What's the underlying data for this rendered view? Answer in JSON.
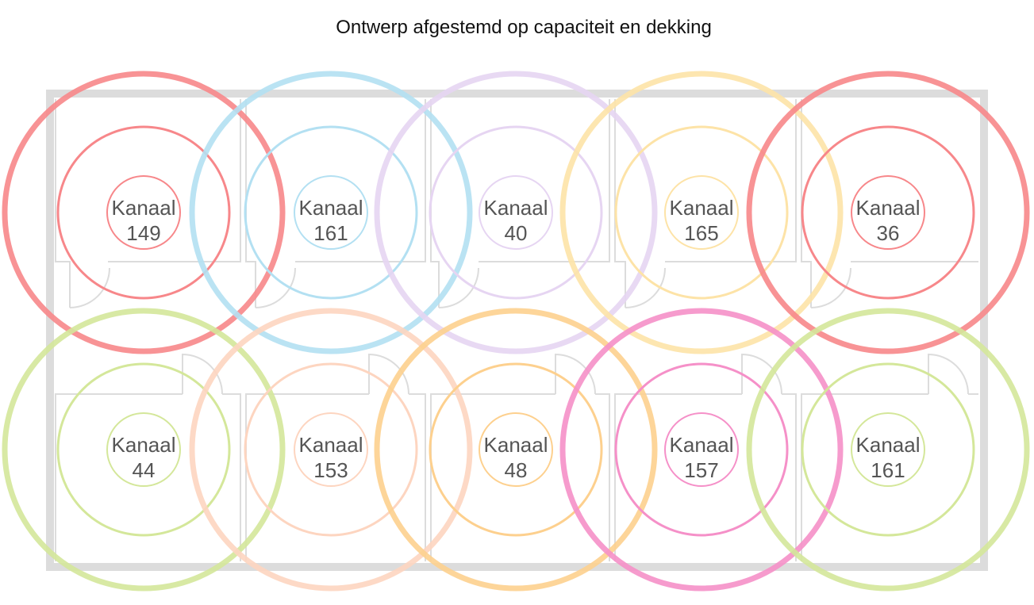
{
  "title": "Ontwerp afgestemd op capaciteit en dekking",
  "nodes": [
    {
      "label": "Kanaal",
      "channel": "149",
      "color": "#f7878a"
    },
    {
      "label": "Kanaal",
      "channel": "161",
      "color": "#b3e0f2"
    },
    {
      "label": "Kanaal",
      "channel": "40",
      "color": "#e6d5f2"
    },
    {
      "label": "Kanaal",
      "channel": "165",
      "color": "#fde3a7"
    },
    {
      "label": "Kanaal",
      "channel": "36",
      "color": "#f7878a"
    },
    {
      "label": "Kanaal",
      "channel": "44",
      "color": "#d4e79a"
    },
    {
      "label": "Kanaal",
      "channel": "153",
      "color": "#fdd5c0"
    },
    {
      "label": "Kanaal",
      "channel": "48",
      "color": "#fdd08e"
    },
    {
      "label": "Kanaal",
      "channel": "157",
      "color": "#f590c8"
    },
    {
      "label": "Kanaal",
      "channel": "161",
      "color": "#d4e79a"
    }
  ]
}
